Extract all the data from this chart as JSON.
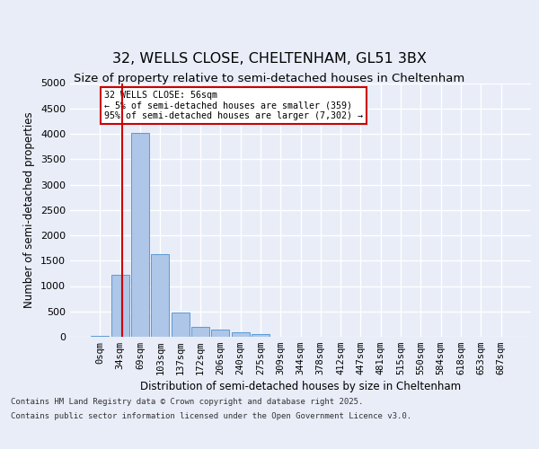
{
  "title_line1": "32, WELLS CLOSE, CHELTENHAM, GL51 3BX",
  "title_line2": "Size of property relative to semi-detached houses in Cheltenham",
  "xlabel": "Distribution of semi-detached houses by size in Cheltenham",
  "ylabel": "Number of semi-detached properties",
  "categories": [
    "0sqm",
    "34sqm",
    "69sqm",
    "103sqm",
    "137sqm",
    "172sqm",
    "206sqm",
    "240sqm",
    "275sqm",
    "309sqm",
    "344sqm",
    "378sqm",
    "412sqm",
    "447sqm",
    "481sqm",
    "515sqm",
    "550sqm",
    "584sqm",
    "618sqm",
    "653sqm",
    "687sqm"
  ],
  "values": [
    20,
    1220,
    4020,
    1620,
    470,
    200,
    135,
    85,
    60,
    0,
    0,
    0,
    0,
    0,
    0,
    0,
    0,
    0,
    0,
    0,
    0
  ],
  "bar_color": "#aec6e8",
  "bar_edge_color": "#5b9bd5",
  "vline_color": "#cc0000",
  "annotation_text": "32 WELLS CLOSE: 56sqm\n← 5% of semi-detached houses are smaller (359)\n95% of semi-detached houses are larger (7,302) →",
  "ylim_max": 5000,
  "yticks": [
    0,
    500,
    1000,
    1500,
    2000,
    2500,
    3000,
    3500,
    4000,
    4500,
    5000
  ],
  "bg_color": "#e8edf8",
  "grid_color": "#ffffff",
  "footer_line1": "Contains HM Land Registry data © Crown copyright and database right 2025.",
  "footer_line2": "Contains public sector information licensed under the Open Government Licence v3.0."
}
